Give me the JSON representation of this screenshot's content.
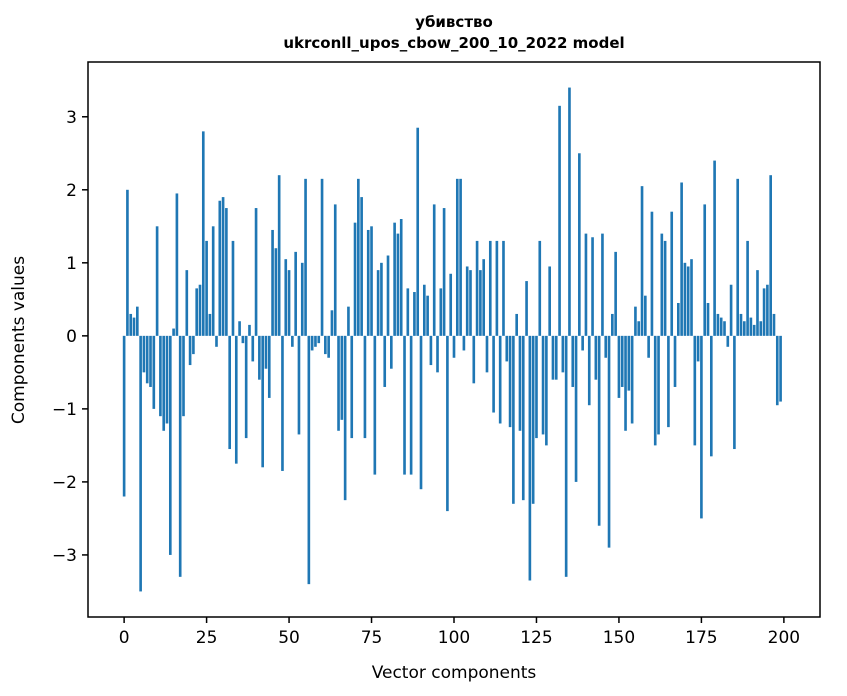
{
  "chart_data": {
    "type": "bar",
    "title": "убивство",
    "subtitle": "ukrconll_upos_cbow_200_10_2022 model",
    "xlabel": "Vector components",
    "ylabel": "Components values",
    "bar_color": "#1f77b4",
    "background_color": "#ffffff",
    "spine_color": "#000000",
    "grid": "off",
    "legend": "none",
    "bar_width": 0.8,
    "xlim": [
      -10.95,
      210.95
    ],
    "ylim": [
      -3.85,
      3.75
    ],
    "xticks": [
      0,
      25,
      50,
      75,
      100,
      125,
      150,
      175,
      200
    ],
    "yticks": [
      -3,
      -2,
      -1,
      0,
      1,
      2,
      3
    ],
    "x": "vector component index 0..199",
    "values": [
      -2.2,
      2.0,
      0.3,
      0.25,
      0.4,
      -3.5,
      -0.5,
      -0.65,
      -0.7,
      -1.0,
      1.5,
      -1.1,
      -1.3,
      -1.2,
      -3.0,
      0.1,
      1.95,
      -3.3,
      -1.1,
      0.9,
      -0.4,
      -0.25,
      0.65,
      0.7,
      2.8,
      1.3,
      0.3,
      1.5,
      -0.15,
      1.85,
      1.9,
      1.75,
      -1.55,
      1.3,
      -1.75,
      0.2,
      -0.1,
      -1.4,
      0.15,
      -0.35,
      1.75,
      -0.6,
      -1.8,
      -0.45,
      -0.85,
      1.45,
      1.2,
      2.2,
      -1.85,
      1.05,
      0.9,
      -0.15,
      1.15,
      -1.35,
      1.0,
      2.15,
      -3.4,
      -0.2,
      -0.15,
      -0.1,
      2.15,
      -0.25,
      -0.3,
      0.35,
      1.8,
      -1.3,
      -1.15,
      -2.25,
      0.4,
      -1.4,
      1.55,
      2.15,
      1.9,
      -1.4,
      1.45,
      1.5,
      -1.9,
      0.9,
      1.0,
      -0.7,
      1.1,
      -0.45,
      1.55,
      1.4,
      1.6,
      -1.9,
      0.65,
      -1.9,
      0.6,
      2.85,
      -2.1,
      0.7,
      0.55,
      -0.4,
      1.8,
      -0.5,
      0.65,
      1.75,
      -2.4,
      0.85,
      -0.3,
      2.15,
      2.15,
      -0.2,
      0.95,
      0.9,
      -0.65,
      1.3,
      0.9,
      1.05,
      -0.5,
      1.3,
      -1.05,
      1.3,
      -1.2,
      1.3,
      -0.35,
      -1.25,
      -2.3,
      0.3,
      -1.3,
      -2.25,
      0.75,
      -3.35,
      -2.3,
      -1.4,
      1.3,
      -1.35,
      -1.5,
      0.95,
      -0.6,
      -0.6,
      3.15,
      -0.5,
      -3.3,
      3.4,
      -0.7,
      -2.0,
      2.5,
      -0.2,
      1.4,
      -0.95,
      1.35,
      -0.6,
      -2.6,
      1.4,
      -0.3,
      -2.9,
      0.3,
      1.15,
      -0.85,
      -0.7,
      -1.3,
      -0.75,
      -1.2,
      0.4,
      0.2,
      2.05,
      0.55,
      -0.3,
      1.7,
      -1.5,
      -1.35,
      1.4,
      1.3,
      -1.25,
      1.7,
      -0.7,
      0.45,
      2.1,
      1.0,
      0.95,
      1.05,
      -1.5,
      -0.35,
      -2.5,
      1.8,
      0.45,
      -1.65,
      2.4,
      0.3,
      0.25,
      0.2,
      -0.15,
      0.7,
      -1.55,
      2.15,
      0.3,
      0.2,
      1.3,
      0.25,
      0.15,
      0.9,
      0.2,
      0.65,
      0.7,
      2.2,
      0.3,
      -0.95,
      -0.9
    ]
  }
}
